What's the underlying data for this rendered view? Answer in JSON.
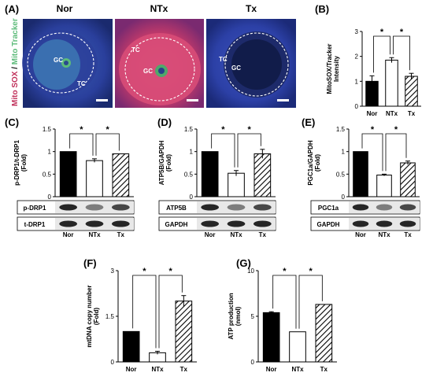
{
  "panels_letters": [
    "(A)",
    "(B)",
    "(C)",
    "(D)",
    "(E)",
    "(F)",
    "(G)"
  ],
  "micrograph": {
    "y_label_part1": "Mito SOX",
    "y_label_sep": " / ",
    "y_label_part2": "Mito Tracker",
    "images": [
      {
        "title": "Nor",
        "labels": [
          "GC",
          "TC"
        ]
      },
      {
        "title": "NTx",
        "labels": [
          "TC",
          "GC"
        ]
      },
      {
        "title": "Tx",
        "labels": [
          "TC",
          "GC"
        ]
      }
    ],
    "colors": {
      "red": "#c0305a",
      "green": "#5dbb7a",
      "blue": "#3447b8"
    }
  },
  "chart_data": [
    {
      "id": "B",
      "type": "bar",
      "categories": [
        "Nor",
        "NTx",
        "Tx"
      ],
      "values": [
        1.0,
        1.85,
        1.2
      ],
      "errors": [
        0.22,
        0.1,
        0.12
      ],
      "ylabel": "MitoSOX/Tracker\nIntensity",
      "ylim": [
        0,
        3
      ],
      "yticks": [
        0,
        1,
        2,
        3
      ],
      "signif": [
        "*",
        "*"
      ]
    },
    {
      "id": "C",
      "type": "bar",
      "categories": [
        "Nor",
        "NTx",
        "Tx"
      ],
      "values": [
        1.0,
        0.8,
        0.95
      ],
      "errors": [
        0,
        0.04,
        0
      ],
      "ylabel": "p-DRP1/t-DRP1\n(Fold)",
      "ylim": [
        0,
        1.5
      ],
      "yticks": [
        0,
        0.5,
        1,
        1.5
      ],
      "signif": [
        "*",
        "*"
      ],
      "blots": [
        "p-DRP1",
        "t-DRP1"
      ]
    },
    {
      "id": "D",
      "type": "bar",
      "categories": [
        "Nor",
        "NTx",
        "Tx"
      ],
      "values": [
        1.0,
        0.52,
        0.95
      ],
      "errors": [
        0,
        0.06,
        0.1
      ],
      "ylabel": "ATP5B/GAPDH\n(Fold)",
      "ylim": [
        0,
        1.5
      ],
      "yticks": [
        0,
        0.5,
        1,
        1.5
      ],
      "signif": [
        "*",
        "*"
      ],
      "blots": [
        "ATP5B",
        "GAPDH"
      ]
    },
    {
      "id": "E",
      "type": "bar",
      "categories": [
        "Nor",
        "NTx",
        "Tx"
      ],
      "values": [
        1.0,
        0.48,
        0.75
      ],
      "errors": [
        0,
        0.02,
        0.04
      ],
      "ylabel": "PGC1a/GAPDH\n(Fold)",
      "ylim": [
        0,
        1.5
      ],
      "yticks": [
        0,
        0.5,
        1,
        1.5
      ],
      "signif": [
        "*",
        "*"
      ],
      "blots": [
        "PGC1a",
        "GAPDH"
      ]
    },
    {
      "id": "F",
      "type": "bar",
      "categories": [
        "Nor",
        "NTx",
        "Tx"
      ],
      "values": [
        1.0,
        0.3,
        2.0
      ],
      "errors": [
        0,
        0.05,
        0.18
      ],
      "ylabel": "mtDNA copy number\n(Fold)",
      "ylim": [
        0,
        3
      ],
      "yticks": [
        0,
        1.5,
        3
      ],
      "signif": [
        "*",
        "*"
      ]
    },
    {
      "id": "G",
      "type": "bar",
      "categories": [
        "Nor",
        "NTx",
        "Tx"
      ],
      "values": [
        5.4,
        3.3,
        6.3
      ],
      "errors": [
        0.1,
        0,
        0
      ],
      "ylabel": "ATP production\n(nmol)",
      "ylim": [
        0,
        10
      ],
      "yticks": [
        0,
        5,
        10
      ],
      "signif": [
        "*",
        "*"
      ]
    }
  ]
}
